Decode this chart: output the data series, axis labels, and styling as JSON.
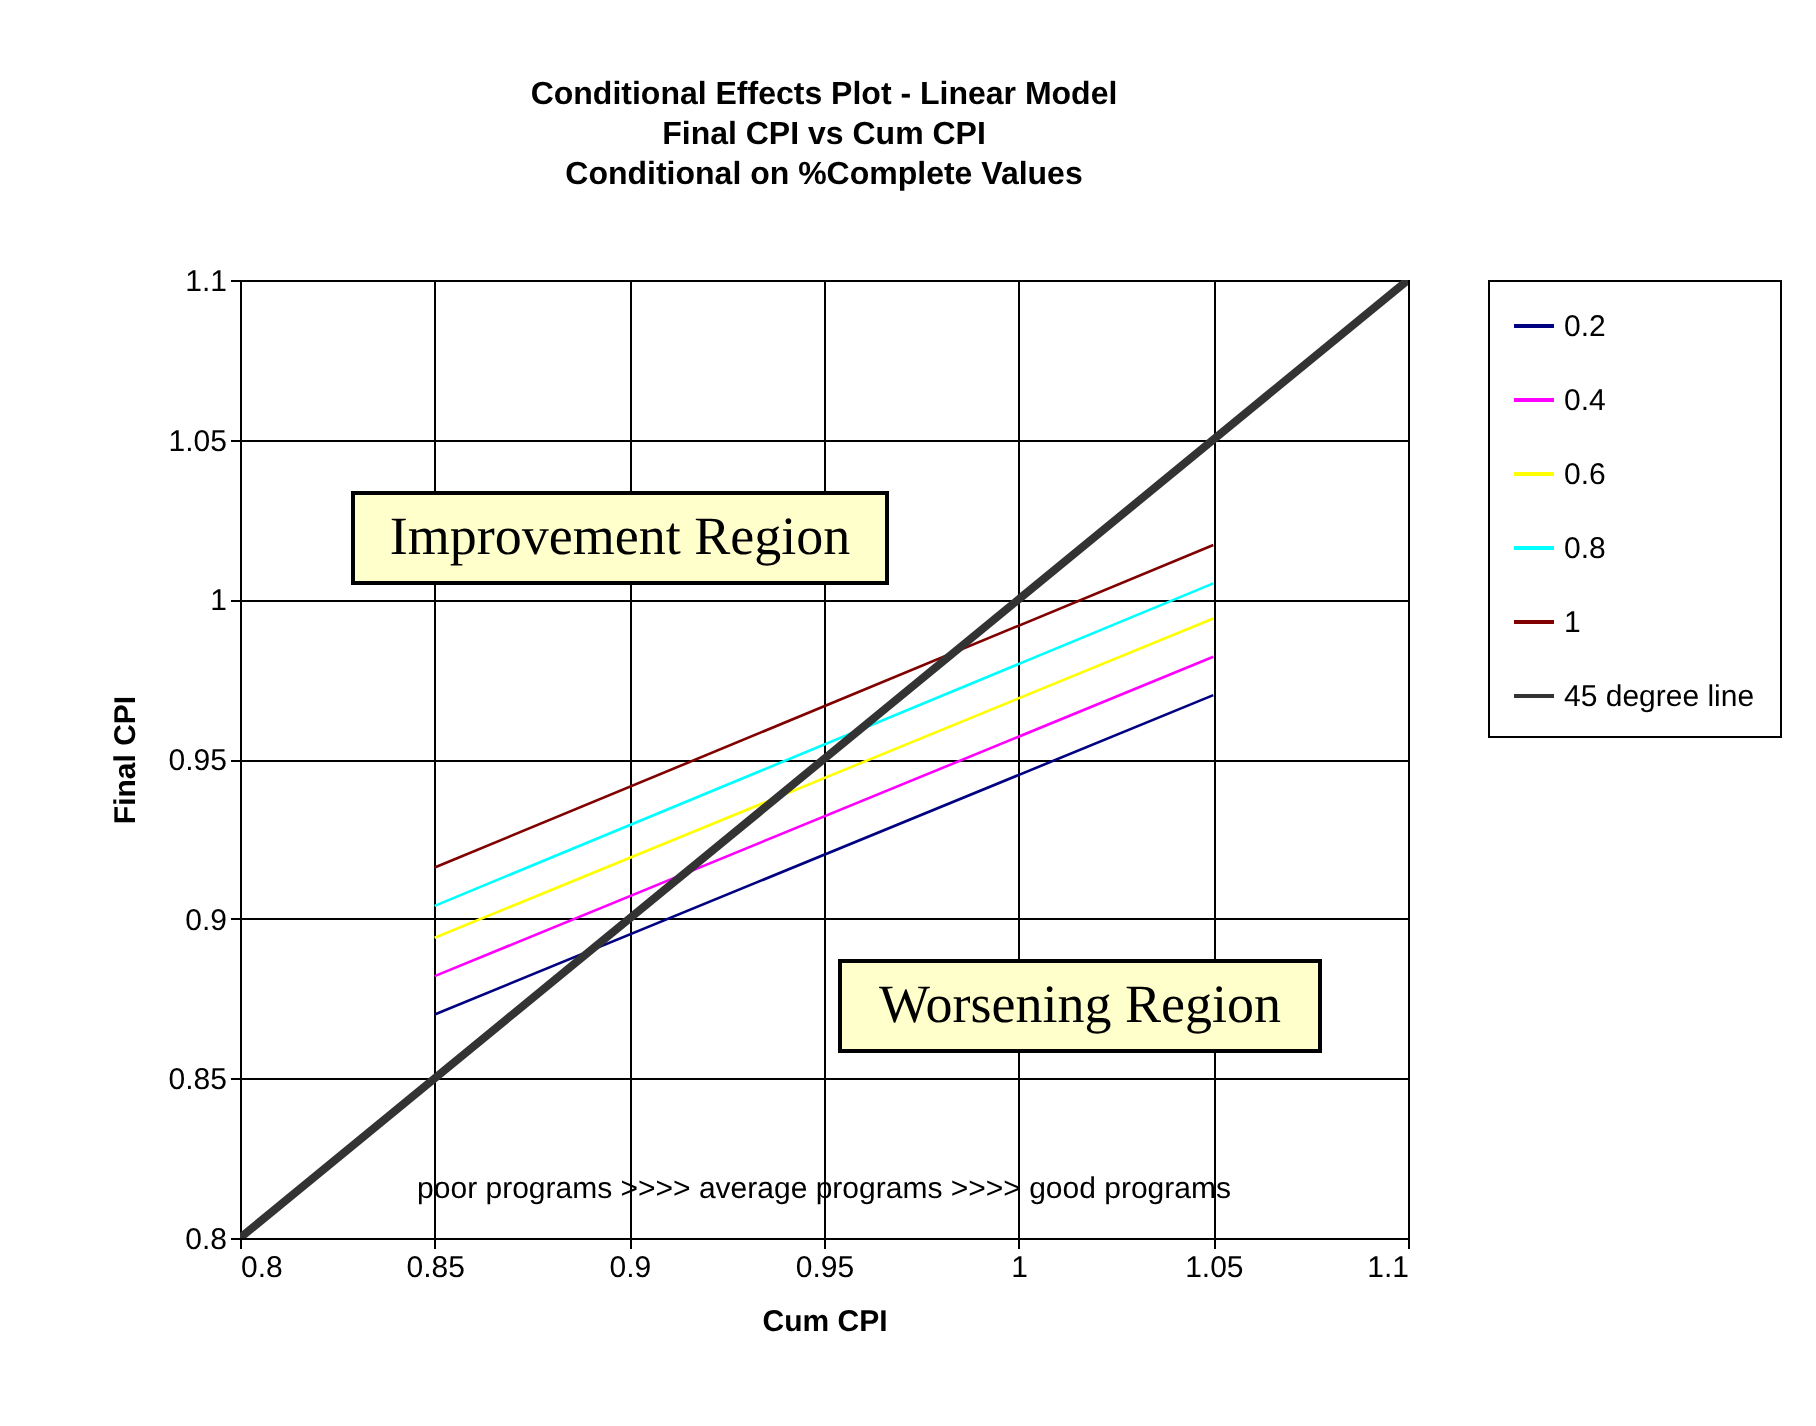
{
  "chart_data": {
    "type": "line",
    "title": "Conditional Effects Plot - Linear Model\nFinal CPI vs Cum CPI\nConditional on  %Complete Values",
    "xlabel": "Cum CPI",
    "ylabel": "Final CPI",
    "x": [
      0.85,
      1.05
    ],
    "series": [
      {
        "name": "0.2",
        "color": "#000080",
        "values": [
          0.87,
          0.97
        ]
      },
      {
        "name": "0.4",
        "color": "#ff00ff",
        "values": [
          0.882,
          0.982
        ]
      },
      {
        "name": "0.6",
        "color": "#ffff00",
        "values": [
          0.894,
          0.994
        ]
      },
      {
        "name": "0.8",
        "color": "#00ffff",
        "values": [
          0.904,
          1.005
        ]
      },
      {
        "name": "1",
        "color": "#800000",
        "values": [
          0.916,
          1.017
        ]
      },
      {
        "name": "45 degree line",
        "color": "#333333",
        "x": [
          0.8,
          1.1
        ],
        "values": [
          0.8,
          1.1
        ]
      }
    ],
    "xlim": [
      0.8,
      1.1
    ],
    "xticks": [
      0.8,
      0.85,
      0.9,
      0.95,
      1,
      1.05,
      1.1
    ],
    "ylim": [
      0.8,
      1.1
    ],
    "yticks": [
      0.8,
      0.85,
      0.9,
      0.95,
      1,
      1.05,
      1.1
    ],
    "grid": true,
    "legend": "right",
    "marker": "none",
    "line_style": "solid",
    "annotations": [
      "Improvement Region",
      "Worsening Region",
      "poor programs >>>> average programs >>>> good programs"
    ]
  }
}
